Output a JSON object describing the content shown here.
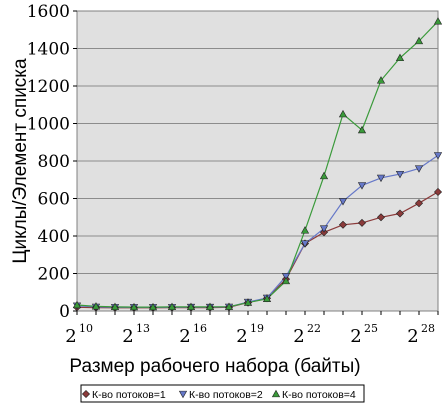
{
  "chart_data": {
    "type": "line",
    "title": "",
    "xlabel": "Размер рабочего набора (байты)",
    "ylabel": "Циклы/Элемент списка",
    "ylim": [
      0,
      1600
    ],
    "yticks": [
      "0",
      "200",
      "400",
      "600",
      "800",
      "1000",
      "1200",
      "1400",
      "1600"
    ],
    "x": [
      10,
      11,
      12,
      13,
      14,
      15,
      16,
      17,
      18,
      19,
      20,
      21,
      22,
      23,
      24,
      25,
      26,
      27,
      28,
      29
    ],
    "xlim": [
      10,
      29
    ],
    "xtick_base": "2",
    "xtick_exponents": [
      "10",
      "13",
      "16",
      "19",
      "22",
      "25",
      "28"
    ],
    "xtick_positions": [
      10,
      13,
      16,
      19,
      22,
      25,
      28
    ],
    "grid": "horizontal",
    "background": "#e0e0e0",
    "legend_position": "bottom",
    "series": [
      {
        "name": "К-во потоков=1",
        "color": "#8b3a3a",
        "marker": "diamond",
        "values": [
          20,
          18,
          17,
          17,
          17,
          18,
          18,
          18,
          20,
          45,
          68,
          170,
          360,
          420,
          460,
          470,
          500,
          520,
          575,
          635
        ]
      },
      {
        "name": "К-во потоков=2",
        "color": "#6678c8",
        "marker": "triangle-down",
        "values": [
          28,
          22,
          20,
          20,
          20,
          20,
          21,
          21,
          22,
          48,
          70,
          185,
          360,
          440,
          585,
          670,
          710,
          730,
          760,
          830
        ]
      },
      {
        "name": "К-во потоков=4",
        "color": "#3a9a3a",
        "marker": "triangle-up",
        "values": [
          32,
          25,
          22,
          21,
          21,
          22,
          22,
          22,
          23,
          45,
          65,
          160,
          430,
          720,
          1050,
          965,
          1230,
          1350,
          1440,
          1545
        ]
      }
    ]
  }
}
